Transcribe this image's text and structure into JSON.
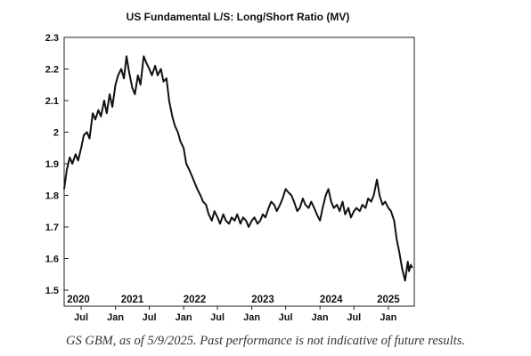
{
  "chart_data": {
    "type": "line",
    "title": "US Fundamental L/S: Long/Short Ratio (MV)",
    "xlabel": "",
    "ylabel": "",
    "ylim": [
      1.5,
      2.3
    ],
    "y_ticks": [
      "2.3",
      "2.2",
      "2.1",
      "2",
      "1.9",
      "1.8",
      "1.7",
      "1.6",
      "1.5"
    ],
    "year_labels": [
      {
        "label": "2020",
        "date": "2020-05-01"
      },
      {
        "label": "2021",
        "date": "2021-04-01"
      },
      {
        "label": "2022",
        "date": "2022-03-01"
      },
      {
        "label": "2023",
        "date": "2023-03-01"
      },
      {
        "label": "2024",
        "date": "2024-03-01"
      },
      {
        "label": "2025",
        "date": "2025-01-01"
      }
    ],
    "month_labels": [
      {
        "label": "Jul",
        "date": "2020-07-01"
      },
      {
        "label": "Jan",
        "date": "2021-01-01"
      },
      {
        "label": "Jul",
        "date": "2021-07-01"
      },
      {
        "label": "Jan",
        "date": "2022-01-01"
      },
      {
        "label": "Jul",
        "date": "2022-07-01"
      },
      {
        "label": "Jan",
        "date": "2023-01-01"
      },
      {
        "label": "Jul",
        "date": "2023-07-01"
      },
      {
        "label": "Jan",
        "date": "2024-01-01"
      },
      {
        "label": "Jul",
        "date": "2024-07-01"
      },
      {
        "label": "Jan",
        "date": "2025-01-01"
      }
    ],
    "x_range": [
      "2020-04-01",
      "2025-05-20"
    ],
    "grid": false,
    "legend": "none",
    "series_color": "#111111",
    "series": [
      {
        "x": [
          "2020-04-01",
          "2020-04-15",
          "2020-05-01",
          "2020-05-15",
          "2020-06-01",
          "2020-06-15",
          "2020-07-01",
          "2020-07-15",
          "2020-08-01",
          "2020-08-15",
          "2020-09-01",
          "2020-09-15",
          "2020-10-01",
          "2020-10-15",
          "2020-11-01",
          "2020-11-15",
          "2020-12-01",
          "2020-12-15",
          "2021-01-01",
          "2021-01-15",
          "2021-02-01",
          "2021-02-15",
          "2021-03-01",
          "2021-03-15",
          "2021-04-01",
          "2021-04-15",
          "2021-05-01",
          "2021-05-15",
          "2021-06-01",
          "2021-06-15",
          "2021-07-01",
          "2021-07-15",
          "2021-08-01",
          "2021-08-15",
          "2021-09-01",
          "2021-09-15",
          "2021-10-01",
          "2021-10-15",
          "2021-11-01",
          "2021-11-15",
          "2021-12-01",
          "2021-12-15",
          "2022-01-01",
          "2022-01-15",
          "2022-02-01",
          "2022-02-15",
          "2022-03-01",
          "2022-03-15",
          "2022-04-01",
          "2022-04-15",
          "2022-05-01",
          "2022-05-15",
          "2022-06-01",
          "2022-06-15",
          "2022-07-01",
          "2022-07-15",
          "2022-08-01",
          "2022-08-15",
          "2022-09-01",
          "2022-09-15",
          "2022-10-01",
          "2022-10-15",
          "2022-11-01",
          "2022-11-15",
          "2022-12-01",
          "2022-12-15",
          "2023-01-01",
          "2023-01-15",
          "2023-02-01",
          "2023-02-15",
          "2023-03-01",
          "2023-03-15",
          "2023-04-01",
          "2023-04-15",
          "2023-05-01",
          "2023-05-15",
          "2023-06-01",
          "2023-06-15",
          "2023-07-01",
          "2023-07-15",
          "2023-08-01",
          "2023-08-15",
          "2023-09-01",
          "2023-09-15",
          "2023-10-01",
          "2023-10-15",
          "2023-11-01",
          "2023-11-15",
          "2023-12-01",
          "2023-12-15",
          "2024-01-01",
          "2024-01-15",
          "2024-02-01",
          "2024-02-15",
          "2024-03-01",
          "2024-03-15",
          "2024-04-01",
          "2024-04-15",
          "2024-05-01",
          "2024-05-15",
          "2024-06-01",
          "2024-06-15",
          "2024-07-01",
          "2024-07-15",
          "2024-08-01",
          "2024-08-15",
          "2024-09-01",
          "2024-09-15",
          "2024-10-01",
          "2024-10-15",
          "2024-11-01",
          "2024-11-15",
          "2024-12-01",
          "2024-12-15",
          "2025-01-01",
          "2025-01-15",
          "2025-02-01",
          "2025-02-15",
          "2025-03-01",
          "2025-03-15",
          "2025-04-01",
          "2025-04-08",
          "2025-04-15",
          "2025-04-22",
          "2025-05-01",
          "2025-05-09"
        ],
        "values": [
          1.82,
          1.88,
          1.92,
          1.9,
          1.93,
          1.91,
          1.95,
          1.99,
          2.0,
          1.98,
          2.06,
          2.04,
          2.07,
          2.05,
          2.1,
          2.06,
          2.12,
          2.08,
          2.15,
          2.18,
          2.2,
          2.17,
          2.24,
          2.19,
          2.14,
          2.12,
          2.18,
          2.15,
          2.24,
          2.22,
          2.2,
          2.18,
          2.21,
          2.18,
          2.2,
          2.16,
          2.17,
          2.1,
          2.05,
          2.02,
          2.0,
          1.97,
          1.95,
          1.9,
          1.88,
          1.86,
          1.84,
          1.82,
          1.8,
          1.78,
          1.77,
          1.74,
          1.72,
          1.75,
          1.73,
          1.71,
          1.74,
          1.72,
          1.71,
          1.73,
          1.72,
          1.74,
          1.71,
          1.73,
          1.72,
          1.7,
          1.72,
          1.73,
          1.71,
          1.72,
          1.74,
          1.73,
          1.76,
          1.78,
          1.77,
          1.75,
          1.77,
          1.79,
          1.82,
          1.81,
          1.8,
          1.78,
          1.75,
          1.76,
          1.79,
          1.77,
          1.76,
          1.78,
          1.76,
          1.74,
          1.72,
          1.76,
          1.8,
          1.82,
          1.78,
          1.76,
          1.77,
          1.75,
          1.78,
          1.74,
          1.76,
          1.73,
          1.75,
          1.76,
          1.75,
          1.77,
          1.76,
          1.79,
          1.78,
          1.8,
          1.85,
          1.8,
          1.77,
          1.78,
          1.76,
          1.75,
          1.72,
          1.66,
          1.62,
          1.57,
          1.53,
          1.56,
          1.59,
          1.56,
          1.58,
          1.57
        ]
      }
    ]
  },
  "caption": "GS GBM, as of 5/9/2025. Past performance is not indicative of future results."
}
